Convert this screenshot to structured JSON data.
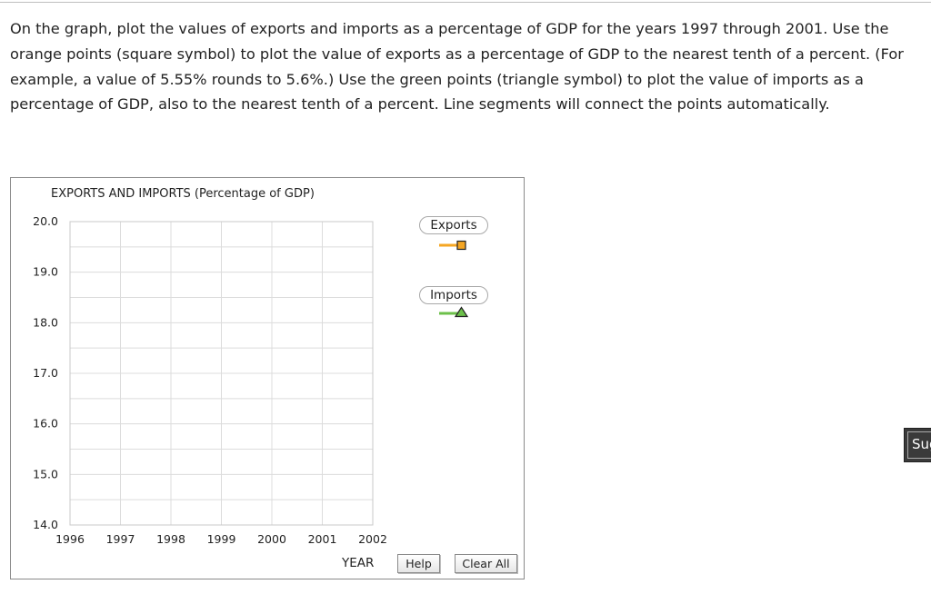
{
  "instructions": "On the graph, plot the values of exports and imports as a percentage of GDP for the years 1997 through 2001. Use the orange points (square symbol) to plot the value of exports as a percentage of GDP to the nearest tenth of a percent. (For example, a value of 5.55% rounds to 5.6%.) Use the green points (triangle symbol) to plot the value of imports as a percentage of GDP, also to the nearest tenth of a percent. Line segments will connect the points automatically.",
  "chart_data": {
    "type": "line",
    "title": "EXPORTS AND IMPORTS (Percentage of GDP)",
    "xlabel": "YEAR",
    "ylabel": "",
    "x_ticks": [
      "1996",
      "1997",
      "1998",
      "1999",
      "2000",
      "2001",
      "2002"
    ],
    "y_ticks": [
      "14.0",
      "15.0",
      "16.0",
      "17.0",
      "18.0",
      "19.0",
      "20.0"
    ],
    "xlim": [
      1996,
      2002
    ],
    "ylim": [
      14,
      20
    ],
    "grid": true,
    "series": [
      {
        "name": "Exports",
        "color": "#f5a623",
        "marker": "square",
        "values": []
      },
      {
        "name": "Imports",
        "color": "#6cc04a",
        "marker": "triangle",
        "values": []
      }
    ]
  },
  "legend": {
    "exports_label": "Exports",
    "imports_label": "Imports",
    "exports_color": "#f5a623",
    "imports_color": "#6cc04a"
  },
  "buttons": {
    "help": "Help",
    "clear_all": "Clear All",
    "submit": "Sug"
  }
}
